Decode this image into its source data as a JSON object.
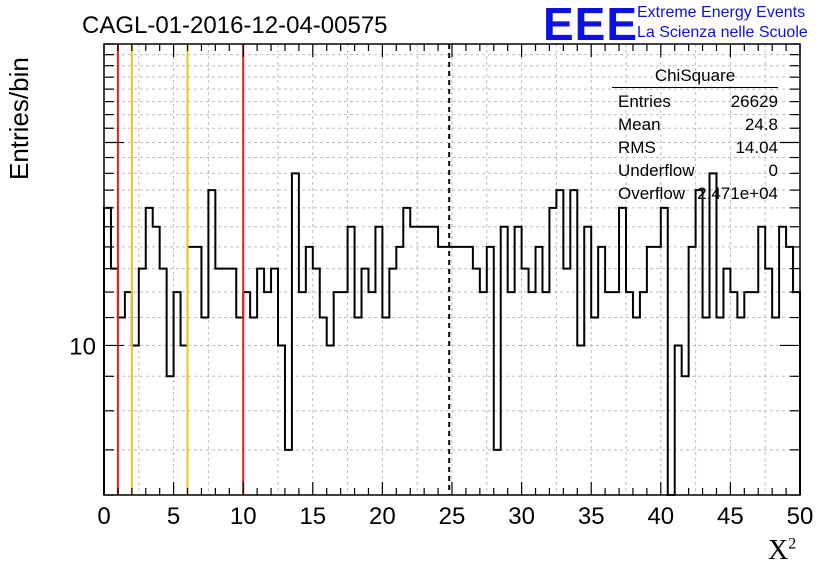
{
  "title": "CAGL-01-2016-12-04-00575",
  "logo": {
    "letters": "EEE",
    "line1": "Extreme Energy Events",
    "line2": "La Scienza nelle Scuole",
    "color": "#1010e0"
  },
  "stats": {
    "title": "ChiSquare",
    "rows": [
      {
        "label": "Entries",
        "value": "26629"
      },
      {
        "label": "Mean",
        "value": "24.8"
      },
      {
        "label": "RMS",
        "value": "14.04"
      },
      {
        "label": "Underflow",
        "value": "0"
      },
      {
        "label": "Overflow",
        "value": "2.471e+04"
      }
    ]
  },
  "chart_data": {
    "type": "bar",
    "style": "step-histogram",
    "xlabel": "X",
    "xlabel_superscript": "2",
    "ylabel": "Entries/bin",
    "xlim": [
      0,
      50
    ],
    "ylim": [
      6,
      28
    ],
    "yscale": "log",
    "grid": true,
    "xticks": [
      "0",
      "5",
      "10",
      "15",
      "20",
      "25",
      "30",
      "35",
      "40",
      "45",
      "50"
    ],
    "yticks": [
      {
        "value": 10,
        "label": "10"
      }
    ],
    "bin_width": 0.5,
    "values": [
      16,
      13,
      11,
      12,
      10,
      13,
      16,
      15,
      13,
      9,
      12,
      10,
      14,
      14,
      11,
      17,
      13,
      13,
      13,
      11,
      12,
      11,
      13,
      12,
      13,
      10,
      7,
      18,
      12,
      14,
      13,
      11,
      10,
      12,
      12,
      15,
      11,
      13,
      12,
      15,
      11,
      13,
      14,
      16,
      15,
      15,
      15,
      15,
      14,
      14,
      14,
      14,
      14,
      13,
      12,
      14,
      7,
      15,
      12,
      15,
      13,
      12,
      14,
      12,
      16,
      17,
      13,
      17,
      10,
      15,
      11,
      14,
      12,
      12,
      16,
      12,
      11,
      12,
      14,
      14,
      16,
      6,
      10,
      9,
      14,
      17,
      11,
      18,
      11,
      13,
      12,
      11,
      12,
      12,
      15,
      13,
      11,
      15,
      14,
      12
    ],
    "vertical_lines": [
      {
        "x": 1,
        "color": "#e8201c",
        "style": "solid"
      },
      {
        "x": 2,
        "color": "#f2c21b",
        "style": "solid"
      },
      {
        "x": 6,
        "color": "#f2c21b",
        "style": "solid"
      },
      {
        "x": 10,
        "color": "#e8201c",
        "style": "solid"
      },
      {
        "x": 24.8,
        "color": "#000000",
        "style": "dashed"
      }
    ]
  }
}
